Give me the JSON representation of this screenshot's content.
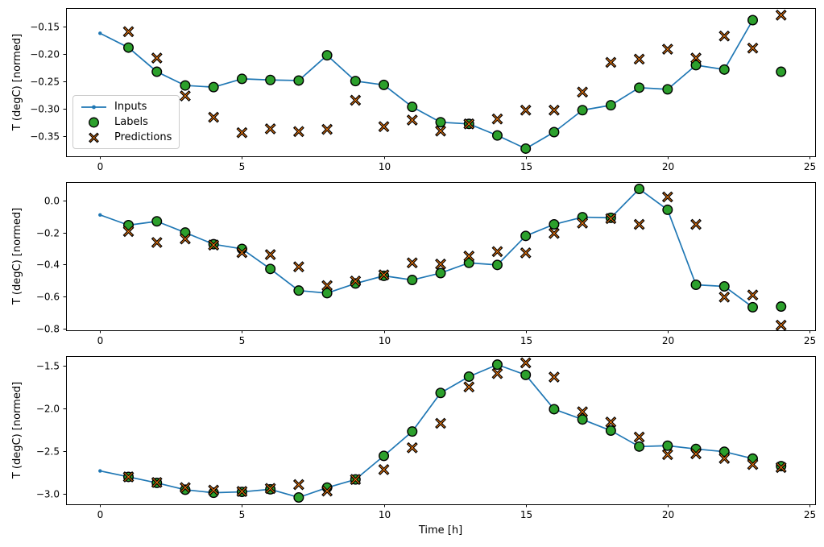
{
  "figure": {
    "xlabel": "Time [h]",
    "legend": {
      "inputs": "Inputs",
      "labels": "Labels",
      "predictions": "Predictions"
    },
    "colors": {
      "inputs": "#1f77b4",
      "labels": "#2ca02c",
      "predictions": "#ff7f0e",
      "marker_edge": "#000000",
      "axis": "#000000",
      "legend_border": "#cccccc",
      "background": "#ffffff"
    }
  },
  "chart_data": [
    {
      "type": "line",
      "title": "",
      "ylabel": "T (degC) [normed]",
      "xlabel": "",
      "grid": false,
      "legend_position": "inside lower-left",
      "xlim": [
        -1.2,
        25.2
      ],
      "ylim": [
        -0.386,
        -0.116
      ],
      "xticks": [
        0,
        5,
        10,
        15,
        20,
        25
      ],
      "xtick_labels": [
        "0",
        "5",
        "10",
        "15",
        "20",
        "25"
      ],
      "yticks": [
        -0.15,
        -0.2,
        -0.25,
        -0.3,
        -0.35
      ],
      "ytick_labels": [
        "−0.15",
        "−0.20",
        "−0.25",
        "−0.30",
        "−0.35"
      ],
      "series": [
        {
          "name": "Inputs",
          "style": "line-with-dots",
          "x": [
            0,
            1,
            2,
            3,
            4,
            5,
            6,
            7,
            8,
            9,
            10,
            11,
            12,
            13,
            14,
            15,
            16,
            17,
            18,
            19,
            20,
            21,
            22,
            23
          ],
          "y": [
            -0.162,
            -0.188,
            -0.232,
            -0.257,
            -0.26,
            -0.245,
            -0.247,
            -0.248,
            -0.202,
            -0.249,
            -0.256,
            -0.296,
            -0.324,
            -0.327,
            -0.348,
            -0.372,
            -0.342,
            -0.302,
            -0.293,
            -0.261,
            -0.264,
            -0.22,
            -0.228,
            -0.138
          ]
        },
        {
          "name": "Labels",
          "style": "scatter-circle",
          "x": [
            1,
            2,
            3,
            4,
            5,
            6,
            7,
            8,
            9,
            10,
            11,
            12,
            13,
            14,
            15,
            16,
            17,
            18,
            19,
            20,
            21,
            22,
            23,
            24
          ],
          "y": [
            -0.188,
            -0.232,
            -0.257,
            -0.26,
            -0.245,
            -0.247,
            -0.248,
            -0.202,
            -0.249,
            -0.256,
            -0.296,
            -0.324,
            -0.327,
            -0.348,
            -0.372,
            -0.342,
            -0.302,
            -0.293,
            -0.261,
            -0.264,
            -0.22,
            -0.228,
            -0.138,
            -0.232
          ]
        },
        {
          "name": "Predictions",
          "style": "scatter-x",
          "x": [
            1,
            2,
            3,
            4,
            5,
            6,
            7,
            8,
            9,
            10,
            11,
            12,
            13,
            14,
            15,
            16,
            17,
            18,
            19,
            20,
            21,
            22,
            23,
            24
          ],
          "y": [
            -0.159,
            -0.207,
            -0.276,
            -0.315,
            -0.343,
            -0.336,
            -0.341,
            -0.337,
            -0.284,
            -0.332,
            -0.32,
            -0.34,
            -0.327,
            -0.318,
            -0.302,
            -0.302,
            -0.269,
            -0.215,
            -0.209,
            -0.191,
            -0.207,
            -0.167,
            -0.189,
            -0.129
          ]
        }
      ]
    },
    {
      "type": "line",
      "title": "",
      "ylabel": "T (degC) [normed]",
      "xlabel": "",
      "grid": false,
      "legend_position": "none",
      "xlim": [
        -1.2,
        25.2
      ],
      "ylim": [
        -0.81,
        0.115
      ],
      "xticks": [
        0,
        5,
        10,
        15,
        20,
        25
      ],
      "xtick_labels": [
        "0",
        "5",
        "10",
        "15",
        "20",
        "25"
      ],
      "yticks": [
        0.0,
        -0.2,
        -0.4,
        -0.6,
        -0.8
      ],
      "ytick_labels": [
        "0.0",
        "−0.2",
        "−0.4",
        "−0.6",
        "−0.8"
      ],
      "series": [
        {
          "name": "Inputs",
          "style": "line-with-dots",
          "x": [
            0,
            1,
            2,
            3,
            4,
            5,
            6,
            7,
            8,
            9,
            10,
            11,
            12,
            13,
            14,
            15,
            16,
            17,
            18,
            19,
            20,
            21,
            22,
            23
          ],
          "y": [
            -0.09,
            -0.154,
            -0.13,
            -0.2,
            -0.273,
            -0.302,
            -0.427,
            -0.562,
            -0.578,
            -0.518,
            -0.47,
            -0.496,
            -0.453,
            -0.389,
            -0.402,
            -0.221,
            -0.149,
            -0.104,
            -0.108,
            0.072,
            -0.058,
            -0.526,
            -0.536,
            -0.666
          ]
        },
        {
          "name": "Labels",
          "style": "scatter-circle",
          "x": [
            1,
            2,
            3,
            4,
            5,
            6,
            7,
            8,
            9,
            10,
            11,
            12,
            13,
            14,
            15,
            16,
            17,
            18,
            19,
            20,
            21,
            22,
            23,
            24
          ],
          "y": [
            -0.154,
            -0.13,
            -0.2,
            -0.273,
            -0.302,
            -0.427,
            -0.562,
            -0.578,
            -0.518,
            -0.47,
            -0.496,
            -0.453,
            -0.389,
            -0.402,
            -0.221,
            -0.149,
            -0.104,
            -0.108,
            0.072,
            -0.058,
            -0.526,
            -0.536,
            -0.666,
            -0.662
          ]
        },
        {
          "name": "Predictions",
          "style": "scatter-x",
          "x": [
            1,
            2,
            3,
            4,
            5,
            6,
            7,
            8,
            9,
            10,
            11,
            12,
            13,
            14,
            15,
            16,
            17,
            18,
            19,
            20,
            21,
            22,
            23,
            24
          ],
          "y": [
            -0.193,
            -0.262,
            -0.24,
            -0.278,
            -0.325,
            -0.338,
            -0.414,
            -0.531,
            -0.503,
            -0.464,
            -0.389,
            -0.397,
            -0.347,
            -0.319,
            -0.327,
            -0.205,
            -0.141,
            -0.113,
            -0.149,
            0.022,
            -0.149,
            -0.603,
            -0.59,
            -0.778
          ]
        }
      ]
    },
    {
      "type": "line",
      "title": "",
      "ylabel": "T (degC) [normed]",
      "xlabel": "Time [h]",
      "grid": false,
      "legend_position": "none",
      "xlim": [
        -1.2,
        25.2
      ],
      "ylim": [
        -3.12,
        -1.39
      ],
      "xticks": [
        0,
        5,
        10,
        15,
        20,
        25
      ],
      "xtick_labels": [
        "0",
        "5",
        "10",
        "15",
        "20",
        "25"
      ],
      "yticks": [
        -1.5,
        -2.0,
        -2.5,
        -3.0
      ],
      "ytick_labels": [
        "−1.5",
        "−2.0",
        "−2.5",
        "−3.0"
      ],
      "series": [
        {
          "name": "Inputs",
          "style": "line-with-dots",
          "x": [
            0,
            1,
            2,
            3,
            4,
            5,
            6,
            7,
            8,
            9,
            10,
            11,
            12,
            13,
            14,
            15,
            16,
            17,
            18,
            19,
            20,
            21,
            22,
            23
          ],
          "y": [
            -2.73,
            -2.8,
            -2.87,
            -2.95,
            -2.985,
            -2.975,
            -2.945,
            -3.04,
            -2.925,
            -2.83,
            -2.555,
            -2.27,
            -1.82,
            -1.63,
            -1.49,
            -1.61,
            -2.01,
            -2.13,
            -2.26,
            -2.446,
            -2.436,
            -2.474,
            -2.506,
            -2.587
          ]
        },
        {
          "name": "Labels",
          "style": "scatter-circle",
          "x": [
            1,
            2,
            3,
            4,
            5,
            6,
            7,
            8,
            9,
            10,
            11,
            12,
            13,
            14,
            15,
            16,
            17,
            18,
            19,
            20,
            21,
            22,
            23,
            24
          ],
          "y": [
            -2.8,
            -2.87,
            -2.95,
            -2.985,
            -2.975,
            -2.945,
            -3.04,
            -2.925,
            -2.83,
            -2.555,
            -2.27,
            -1.82,
            -1.63,
            -1.49,
            -1.61,
            -2.01,
            -2.13,
            -2.26,
            -2.446,
            -2.436,
            -2.474,
            -2.506,
            -2.587,
            -2.675
          ]
        },
        {
          "name": "Predictions",
          "style": "scatter-x",
          "x": [
            1,
            2,
            3,
            4,
            5,
            6,
            7,
            8,
            9,
            10,
            11,
            12,
            13,
            14,
            15,
            16,
            17,
            18,
            19,
            20,
            21,
            22,
            23,
            24
          ],
          "y": [
            -2.8,
            -2.865,
            -2.925,
            -2.955,
            -2.97,
            -2.935,
            -2.89,
            -2.965,
            -2.83,
            -2.715,
            -2.46,
            -2.175,
            -1.75,
            -1.594,
            -1.469,
            -1.635,
            -2.04,
            -2.16,
            -2.335,
            -2.54,
            -2.531,
            -2.585,
            -2.655,
            -2.69
          ]
        }
      ]
    }
  ]
}
